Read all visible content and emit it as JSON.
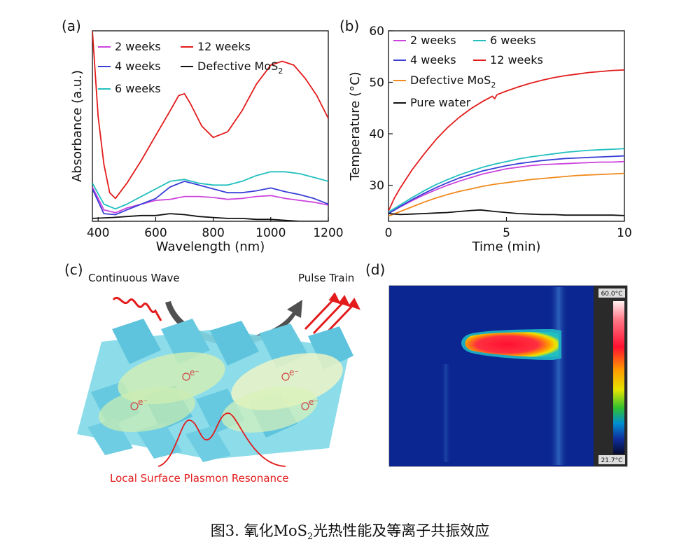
{
  "colors": {
    "magenta": "#cc44dd",
    "blue": "#3a3fd6",
    "cyan": "#22bfbf",
    "red": "#e31b1b",
    "black": "#111111",
    "orange": "#f08a1c"
  },
  "panels": {
    "a": {
      "label": "(a)"
    },
    "b": {
      "label": "(b)"
    },
    "c": {
      "label": "(c)",
      "continuous_wave": "Continuous Wave",
      "pulse_train": "Pulse Train",
      "lspr": "Local Surface Plasmon Resonance",
      "electron_label": "e⁻"
    },
    "d": {
      "label": "(d)",
      "scale_max": "60.0°C",
      "scale_min": "21.7°C"
    }
  },
  "caption": {
    "prefix": "图3. 氧化MoS",
    "sub": "2",
    "suffix": "光热性能及等离子共振效应"
  },
  "chart_data": [
    {
      "type": "line",
      "panel": "a",
      "xlabel": "Wavelength (nm)",
      "ylabel": "Absorbance (a.u.)",
      "xlim": [
        380,
        1200
      ],
      "ylim": [
        0,
        1
      ],
      "xticks": [
        400,
        600,
        800,
        1000,
        1200
      ],
      "yticks": [],
      "legend": [
        {
          "name": "2   weeks",
          "series": 0
        },
        {
          "name": "12 weeks",
          "series": 3
        },
        {
          "name": "4   weeks",
          "series": 1
        },
        {
          "name": "Defective MoS",
          "sub": "2",
          "series": 4
        },
        {
          "name": "6   weeks",
          "series": 2
        }
      ],
      "series": [
        {
          "color": "magenta",
          "x": [
            380,
            420,
            460,
            500,
            550,
            600,
            650,
            700,
            750,
            800,
            850,
            900,
            950,
            1000,
            1050,
            1100,
            1150,
            1200
          ],
          "y": [
            0.18,
            0.06,
            0.045,
            0.07,
            0.09,
            0.11,
            0.115,
            0.13,
            0.13,
            0.125,
            0.115,
            0.12,
            0.13,
            0.135,
            0.12,
            0.11,
            0.1,
            0.085
          ]
        },
        {
          "color": "blue",
          "x": [
            380,
            420,
            460,
            500,
            550,
            600,
            650,
            700,
            750,
            800,
            850,
            900,
            950,
            1000,
            1050,
            1100,
            1150,
            1200
          ],
          "y": [
            0.17,
            0.04,
            0.035,
            0.06,
            0.09,
            0.12,
            0.18,
            0.21,
            0.19,
            0.17,
            0.15,
            0.15,
            0.16,
            0.175,
            0.155,
            0.14,
            0.12,
            0.09
          ]
        },
        {
          "color": "cyan",
          "x": [
            380,
            420,
            460,
            500,
            550,
            600,
            650,
            700,
            750,
            800,
            850,
            900,
            950,
            1000,
            1050,
            1100,
            1150,
            1200
          ],
          "y": [
            0.2,
            0.09,
            0.065,
            0.09,
            0.13,
            0.17,
            0.21,
            0.22,
            0.2,
            0.19,
            0.19,
            0.21,
            0.24,
            0.26,
            0.26,
            0.25,
            0.23,
            0.21
          ]
        },
        {
          "color": "red",
          "x": [
            380,
            400,
            420,
            440,
            460,
            500,
            550,
            600,
            650,
            680,
            700,
            720,
            760,
            800,
            850,
            900,
            950,
            1000,
            1040,
            1080,
            1120,
            1160,
            1200
          ],
          "y": [
            1.0,
            0.55,
            0.3,
            0.15,
            0.12,
            0.2,
            0.32,
            0.45,
            0.58,
            0.66,
            0.67,
            0.62,
            0.5,
            0.44,
            0.47,
            0.58,
            0.72,
            0.82,
            0.84,
            0.82,
            0.75,
            0.66,
            0.54
          ]
        },
        {
          "color": "black",
          "x": [
            380,
            450,
            500,
            550,
            600,
            650,
            700,
            750,
            800,
            850,
            900,
            950,
            1000,
            1050,
            1100,
            1150,
            1200
          ],
          "y": [
            0.015,
            0.02,
            0.025,
            0.03,
            0.03,
            0.04,
            0.035,
            0.025,
            0.02,
            0.015,
            0.015,
            0.01,
            0.01,
            0.005,
            0.0,
            0.0,
            0.0
          ]
        }
      ]
    },
    {
      "type": "line",
      "panel": "b",
      "xlabel": "Time (min)",
      "ylabel": "Temperature (°C)",
      "xlim": [
        0,
        10
      ],
      "ylim": [
        23,
        60
      ],
      "xticks": [
        0,
        5,
        10
      ],
      "yticks": [
        30,
        40,
        50,
        60
      ],
      "legend": [
        {
          "name": "2   weeks",
          "series": 0
        },
        {
          "name": "6   weeks",
          "series": 2
        },
        {
          "name": "4   weeks",
          "series": 1
        },
        {
          "name": "12 weeks",
          "series": 3
        },
        {
          "name": "Defective MoS",
          "sub": "2",
          "series": 4
        },
        {
          "name": "Pure water",
          "series": 5
        }
      ],
      "series": [
        {
          "color": "magenta",
          "x": [
            0,
            0.5,
            1,
            1.5,
            2,
            2.5,
            3,
            3.5,
            4,
            4.5,
            5,
            5.5,
            6,
            6.5,
            7,
            7.5,
            8,
            8.5,
            9,
            9.5,
            10
          ],
          "y": [
            24.5,
            25.8,
            27,
            28.1,
            29.1,
            30,
            30.8,
            31.5,
            32.2,
            32.7,
            33.2,
            33.5,
            33.8,
            34,
            34.1,
            34.2,
            34.3,
            34.4,
            34.5,
            34.5,
            34.6
          ]
        },
        {
          "color": "blue",
          "x": [
            0,
            0.5,
            1,
            1.5,
            2,
            2.5,
            3,
            3.5,
            4,
            4.5,
            5,
            5.5,
            6,
            6.5,
            7,
            7.5,
            8,
            8.5,
            9,
            9.5,
            10
          ],
          "y": [
            24.5,
            25.9,
            27.2,
            28.4,
            29.5,
            30.5,
            31.4,
            32.1,
            32.8,
            33.3,
            33.8,
            34.2,
            34.5,
            34.8,
            35,
            35.2,
            35.3,
            35.4,
            35.5,
            35.6,
            35.7
          ]
        },
        {
          "color": "cyan",
          "x": [
            0,
            0.5,
            1,
            1.5,
            2,
            2.5,
            3,
            3.5,
            4,
            4.5,
            5,
            5.5,
            6,
            6.5,
            7,
            7.5,
            8,
            8.5,
            9,
            9.5,
            10
          ],
          "y": [
            24.8,
            26.2,
            27.6,
            28.9,
            30.1,
            31.1,
            32,
            32.8,
            33.5,
            34.1,
            34.6,
            35.1,
            35.5,
            35.8,
            36.1,
            36.4,
            36.6,
            36.8,
            36.9,
            37,
            37.1
          ]
        },
        {
          "color": "red",
          "x": [
            0,
            0.25,
            0.5,
            1,
            1.5,
            2,
            2.5,
            3,
            3.5,
            4,
            4.4,
            4.5,
            4.6,
            5,
            5.5,
            6,
            6.5,
            7,
            7.5,
            8,
            8.5,
            9,
            9.5,
            10
          ],
          "y": [
            25,
            27.5,
            29.5,
            33,
            36,
            38.8,
            41.2,
            43.2,
            44.9,
            46.3,
            47.3,
            46.8,
            47.6,
            48.3,
            49.1,
            49.8,
            50.4,
            50.9,
            51.3,
            51.6,
            51.9,
            52.1,
            52.3,
            52.4
          ]
        },
        {
          "color": "orange",
          "x": [
            0,
            0.5,
            1,
            1.5,
            2,
            2.5,
            3,
            3.5,
            4,
            4.5,
            5,
            5.5,
            6,
            6.5,
            7,
            7.5,
            8,
            8.5,
            9,
            9.5,
            10
          ],
          "y": [
            24,
            24.9,
            25.8,
            26.7,
            27.5,
            28.2,
            28.8,
            29.3,
            29.8,
            30.2,
            30.5,
            30.8,
            31.1,
            31.3,
            31.5,
            31.7,
            31.9,
            32,
            32.1,
            32.2,
            32.3
          ]
        },
        {
          "color": "black",
          "x": [
            0,
            0.5,
            1,
            1.5,
            2,
            2.5,
            3,
            3.5,
            3.9,
            4.5,
            5,
            5.5,
            6,
            6.5,
            7,
            7.5,
            8,
            8.5,
            9,
            9.5,
            10
          ],
          "y": [
            24.5,
            24.3,
            24.4,
            24.5,
            24.6,
            24.7,
            24.9,
            25.1,
            25.2,
            24.9,
            24.7,
            24.5,
            24.4,
            24.3,
            24.3,
            24.2,
            24.2,
            24.2,
            24.2,
            24.2,
            24.1
          ]
        }
      ]
    }
  ]
}
